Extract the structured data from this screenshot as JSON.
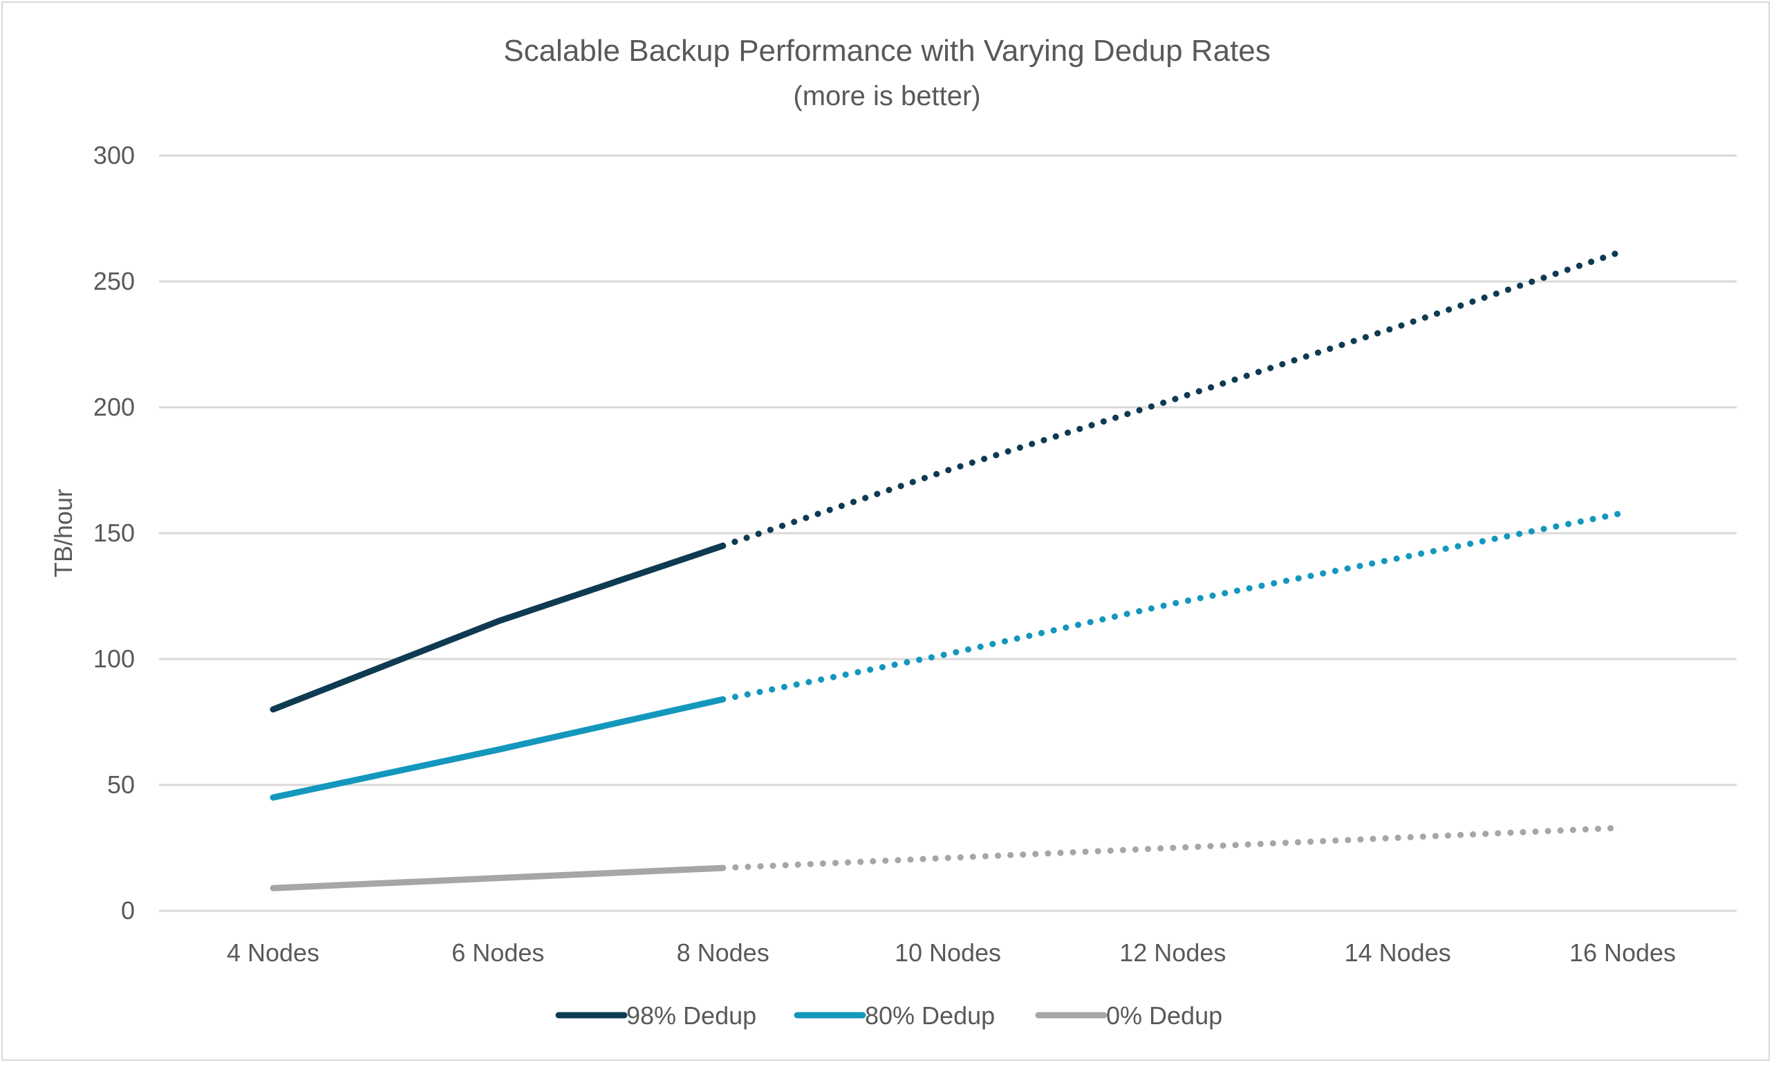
{
  "chart_data": {
    "type": "line",
    "title": "Scalable Backup Performance with Varying Dedup Rates",
    "subtitle": "(more is better)",
    "xlabel": "",
    "ylabel": "TB/hour",
    "ylim": [
      0,
      300
    ],
    "yticks": [
      0,
      50,
      100,
      150,
      200,
      250,
      300
    ],
    "categories": [
      "4 Nodes",
      "6 Nodes",
      "8 Nodes",
      "10 Nodes",
      "12 Nodes",
      "14 Nodes",
      "16 Nodes"
    ],
    "grid": true,
    "legend_position": "bottom",
    "measured_through_index": 2,
    "projected_style": "dotted",
    "series": [
      {
        "name": "98% Dedup",
        "color": "#0e3a52",
        "values": [
          80,
          115,
          145,
          175,
          203,
          232,
          262
        ]
      },
      {
        "name": "80% Dedup",
        "color": "#1497bd",
        "values": [
          45,
          64,
          84,
          102,
          122,
          140,
          158
        ]
      },
      {
        "name": "0% Dedup",
        "color": "#a6a6a6",
        "values": [
          9,
          13,
          17,
          21,
          25,
          29,
          33
        ]
      }
    ]
  }
}
